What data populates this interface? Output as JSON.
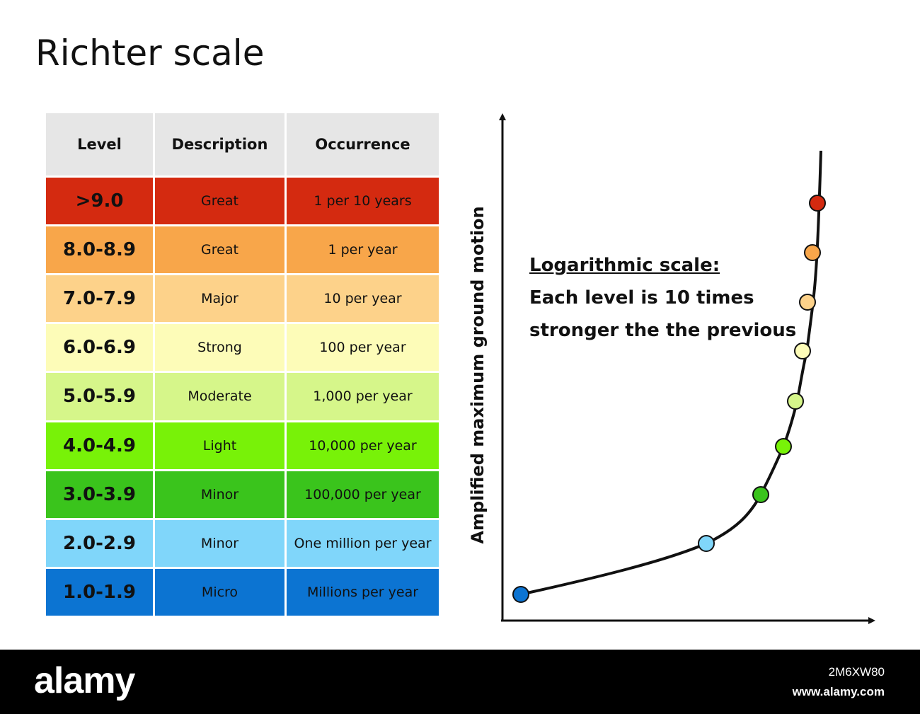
{
  "title": "Richter scale",
  "table": {
    "headers": [
      "Level",
      "Description",
      "Occurrence"
    ],
    "rows": [
      {
        "level": ">9.0",
        "description": "Great",
        "occurrence": "1 per 10 years",
        "color": "#d42a10"
      },
      {
        "level": "8.0-8.9",
        "description": "Great",
        "occurrence": "1 per year",
        "color": "#f8a64a"
      },
      {
        "level": "7.0-7.9",
        "description": "Major",
        "occurrence": "10 per year",
        "color": "#fdd28a"
      },
      {
        "level": "6.0-6.9",
        "description": "Strong",
        "occurrence": "100 per year",
        "color": "#fdfcb8"
      },
      {
        "level": "5.0-5.9",
        "description": "Moderate",
        "occurrence": "1,000 per year",
        "color": "#d6f68a"
      },
      {
        "level": "4.0-4.9",
        "description": "Light",
        "occurrence": "10,000 per year",
        "color": "#78f208"
      },
      {
        "level": "3.0-3.9",
        "description": "Minor",
        "occurrence": "100,000 per year",
        "color": "#3ac41c"
      },
      {
        "level": "2.0-2.9",
        "description": "Minor",
        "occurrence": "One million per year",
        "color": "#80d6fa"
      },
      {
        "level": "1.0-1.9",
        "description": "Micro",
        "occurrence": "Millions per year",
        "color": "#0c74d2"
      }
    ]
  },
  "graph": {
    "ylabel": "Amplified maximum ground motion",
    "annotation_heading": "Logarithmic scale:",
    "annotation_line1": "Each level is 10 times",
    "annotation_line2": "stronger the the previous",
    "curve_color": "#111111",
    "point_colors_low_to_high": [
      "#0c74d2",
      "#80d6fa",
      "#3ac41c",
      "#78f208",
      "#d6f68a",
      "#fdfcb8",
      "#fdd28a",
      "#f8a64a",
      "#d42a10"
    ]
  },
  "footer": {
    "logo": "alamy",
    "image_id": "2M6XW80",
    "url": "www.alamy.com"
  }
}
